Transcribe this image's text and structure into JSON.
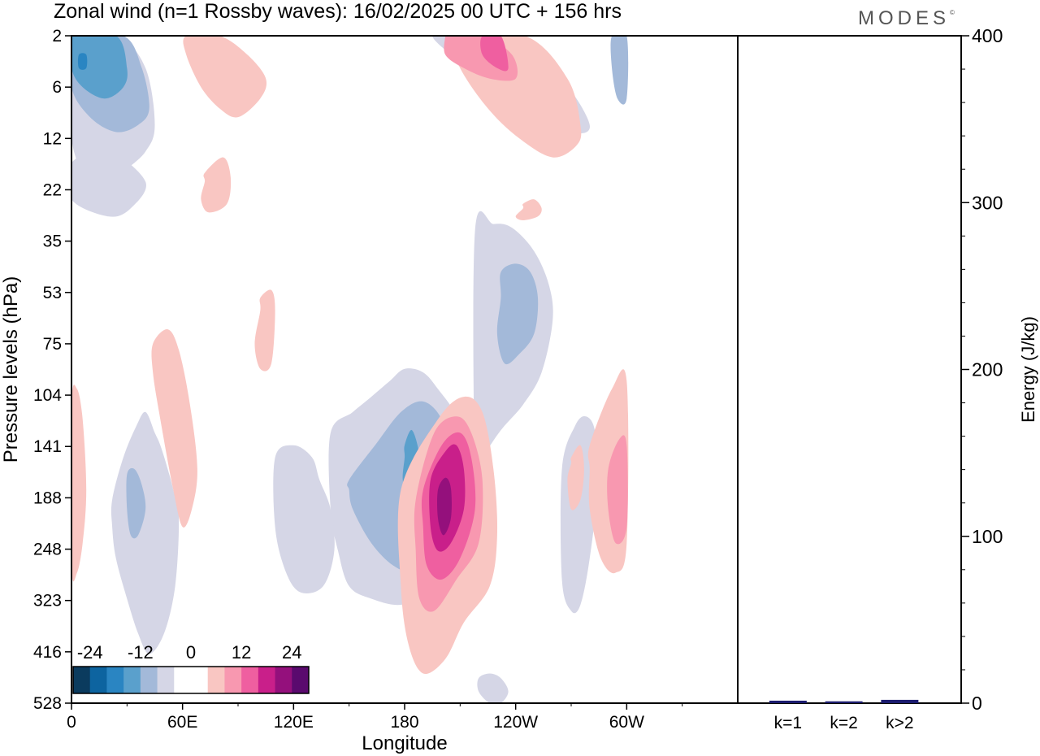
{
  "title": "Zonal wind (n=1 Rossby waves):  16/02/2025  00 UTC  + 156 hrs",
  "brand": "MODES",
  "brand_mark": "©",
  "chart_data": [
    {
      "type": "heatmap",
      "xlabel": "Longitude",
      "ylabel": "Pressure levels (hPa)",
      "x_ticks": [
        "0",
        "60E",
        "120E",
        "180",
        "120W",
        "60W"
      ],
      "y_ticks": [
        "2",
        "6",
        "12",
        "22",
        "35",
        "53",
        "75",
        "104",
        "141",
        "188",
        "248",
        "323",
        "416",
        "528"
      ],
      "colorbar": {
        "tick_labels": [
          "-24",
          "-12",
          "0",
          "12",
          "24"
        ],
        "colors": [
          "#0b3b5e",
          "#0d64a0",
          "#2a85c2",
          "#5aa0cc",
          "#a3b9d9",
          "#d5d6e6",
          "#ffffff",
          "#ffffff",
          "#f9c6c2",
          "#f898b0",
          "#ef5fa0",
          "#c91f8a",
          "#94107c",
          "#5a0a6e"
        ]
      },
      "contours": [
        {
          "level": "light-negative",
          "color": "#d5d6e6",
          "regions": [
            {
              "lon": [
                0,
                25,
                40,
                45,
                40,
                28,
                22,
                10,
                0
              ],
              "lev": [
                2,
                2,
                4,
                10,
                14,
                18,
                22,
                20,
                12
              ]
            },
            {
              "lon": [
                0,
                20,
                40,
                32,
                20,
                0
              ],
              "lev": [
                16,
                14,
                20,
                26,
                28,
                24
              ]
            },
            {
              "lon": [
                215,
                240,
                265,
                280,
                270,
                248,
                215,
                195
              ],
              "lev": [
                2,
                2,
                5,
                10,
                11,
                8,
                4,
                2
              ]
            },
            {
              "lon": [
                218,
                228,
                238,
                250,
                258,
                260,
                254,
                244,
                232,
                222,
                218
              ],
              "lev": [
                32,
                30,
                31,
                38,
                50,
                64,
                90,
                110,
                128,
                150,
                160
              ]
            },
            {
              "lon": [
                140,
                152,
                162,
                172,
                180,
                190,
                198,
                208,
                214,
                214,
                206,
                194,
                178,
                162,
                150,
                144,
                140
              ],
              "lev": [
                130,
                115,
                105,
                95,
                88,
                90,
                100,
                118,
                150,
                220,
                280,
                310,
                330,
                320,
                300,
                250,
                200
              ]
            },
            {
              "lon": [
                110,
                120,
                130,
                134,
                140,
                142,
                136,
                124,
                116,
                110
              ],
              "lev": [
                150,
                140,
                150,
                170,
                200,
                250,
                300,
                310,
                280,
                220
              ]
            },
            {
              "lon": [
                22,
                28,
                35,
                40,
                45,
                48,
                52,
                55,
                58,
                56,
                50,
                42,
                36,
                30,
                24,
                22
              ],
              "lev": [
                190,
                150,
                125,
                115,
                130,
                140,
                160,
                180,
                210,
                300,
                380,
                420,
                380,
                320,
                260,
                220
              ]
            },
            {
              "lon": [
                220,
                226,
                232,
                236,
                232,
                226,
                220
              ],
              "lev": [
                470,
                460,
                470,
                500,
                528,
                528,
                500
              ]
            },
            {
              "lon": [
                265,
                272,
                278,
                283,
                284,
                280,
                275,
                270,
                265
              ],
              "lev": [
                160,
                125,
                118,
                130,
                180,
                260,
                330,
                340,
                290
              ]
            }
          ]
        },
        {
          "level": "mid-negative",
          "color": "#a3b9d9",
          "regions": [
            {
              "lon": [
                0,
                28,
                38,
                42,
                36,
                24,
                10,
                0
              ],
              "lev": [
                2,
                2,
                4,
                8,
                10,
                11,
                9,
                6
              ]
            },
            {
              "lon": [
                232,
                240,
                248,
                252,
                250,
                242,
                234,
                230,
                232
              ],
              "lev": [
                45,
                42,
                45,
                55,
                70,
                80,
                85,
                70,
                55
              ]
            },
            {
              "lon": [
                150,
                164,
                178,
                190,
                200,
                205,
                204,
                198,
                186,
                174,
                162,
                152,
                150
              ],
              "lev": [
                170,
                140,
                115,
                108,
                120,
                150,
                200,
                260,
                280,
                270,
                240,
                200,
                180
              ]
            },
            {
              "lon": [
                30,
                34,
                38,
                40,
                36,
                32,
                30
              ],
              "lev": [
                165,
                160,
                175,
                200,
                230,
                230,
                200
              ]
            },
            {
              "lon": [
                292,
                300,
                300,
                295,
                292
              ],
              "lev": [
                2,
                2,
                7,
                7,
                4
              ]
            }
          ]
        },
        {
          "level": "dark-negative",
          "color": "#5aa0cc",
          "regions": [
            {
              "lon": [
                0,
                24,
                30,
                28,
                18,
                6,
                0
              ],
              "lev": [
                2,
                2,
                4,
                6,
                7,
                6,
                4
              ]
            },
            {
              "lon": [
                180,
                184,
                188,
                186,
                182,
                179,
                180
              ],
              "lev": [
                140,
                128,
                150,
                180,
                190,
                170,
                150
              ]
            }
          ]
        },
        {
          "level": "strong-negative",
          "color": "#2a85c2",
          "regions": [
            {
              "lon": [
                4,
                8,
                8,
                4
              ],
              "lev": [
                3,
                3,
                4,
                4
              ]
            }
          ]
        },
        {
          "level": "light-positive",
          "color": "#f9c6c2",
          "regions": [
            {
              "lon": [
                62,
                80,
                95,
                105,
                102,
                90,
                80,
                70,
                62
              ],
              "lev": [
                2,
                2,
                3,
                5,
                7,
                9,
                8,
                6,
                3
              ]
            },
            {
              "lon": [
                205,
                245,
                268,
                275,
                273,
                260,
                242,
                225,
                210,
                205
              ],
              "lev": [
                2,
                2,
                5,
                10,
                13,
                15,
                12,
                8,
                4,
                2
              ]
            },
            {
              "lon": [
                72,
                82,
                86,
                84,
                74,
                70,
                72
              ],
              "lev": [
                18,
                15,
                19,
                25,
                27,
                24,
                20
              ]
            },
            {
              "lon": [
                244,
                250,
                254,
                252,
                244,
                240,
                244
              ],
              "lev": [
                25,
                24,
                26,
                28,
                29,
                28,
                26
              ]
            },
            {
              "lon": [
                102,
                108,
                110,
                108,
                102,
                99,
                102
              ],
              "lev": [
                55,
                52,
                60,
                85,
                88,
                75,
                60
              ]
            },
            {
              "lon": [
                44,
                52,
                58,
                64,
                68,
                65,
                60,
                55,
                48,
                44
              ],
              "lev": [
                75,
                68,
                78,
                110,
                160,
                200,
                220,
                180,
                120,
                90
              ]
            },
            {
              "lon": [
                178,
                198,
                212,
                222,
                228,
                230,
                226,
                212,
                202,
                190,
                182,
                178
              ],
              "lev": [
                180,
                120,
                105,
                115,
                160,
                230,
                300,
                360,
                430,
                460,
                400,
                300
              ]
            },
            {
              "lon": [
                0,
                3,
                6,
                8,
                6,
                3,
                0
              ],
              "lev": [
                110,
                100,
                120,
                180,
                240,
                280,
                270
              ]
            },
            {
              "lon": [
                270,
                275,
                277,
                275,
                270,
                268,
                270
              ],
              "lev": [
                150,
                140,
                160,
                190,
                200,
                170,
                155
              ]
            },
            {
              "lon": [
                280,
                292,
                300,
                300,
                294,
                286,
                280,
                280
              ],
              "lev": [
                140,
                100,
                95,
                240,
                280,
                260,
                200,
                160
              ]
            }
          ]
        },
        {
          "level": "pink",
          "color": "#f898b0",
          "regions": [
            {
              "lon": [
                202,
                222,
                238,
                240,
                226,
                212,
                202,
                202
              ],
              "lev": [
                2,
                2,
                3,
                5,
                5,
                4,
                3,
                2
              ]
            },
            {
              "lon": [
                186,
                196,
                208,
                216,
                222,
                220,
                208,
                196,
                188,
                186
              ],
              "lev": [
                190,
                130,
                118,
                130,
                170,
                240,
                290,
                340,
                320,
                250
              ]
            },
            {
              "lon": [
                290,
                296,
                300,
                300,
                294,
                290
              ],
              "lev": [
                160,
                135,
                140,
                220,
                240,
                200
              ]
            }
          ]
        },
        {
          "level": "magenta",
          "color": "#ef5fa0",
          "regions": [
            {
              "lon": [
                190,
                200,
                210,
                216,
                218,
                210,
                200,
                192,
                190
              ],
              "lev": [
                180,
                140,
                130,
                150,
                200,
                260,
                290,
                270,
                220
              ]
            },
            {
              "lon": [
                222,
                232,
                236,
                230,
                222
              ],
              "lev": [
                2,
                2,
                4,
                4,
                3
              ]
            }
          ]
        },
        {
          "level": "deep-magenta",
          "color": "#c91f8a",
          "regions": [
            {
              "lon": [
                194,
                202,
                208,
                212,
                212,
                205,
                198,
                194
              ],
              "lev": [
                170,
                145,
                140,
                160,
                200,
                240,
                250,
                220
              ]
            }
          ]
        },
        {
          "level": "darkest",
          "color": "#94107c",
          "regions": [
            {
              "lon": [
                198,
                202,
                205,
                205,
                201,
                198
              ],
              "lev": [
                180,
                168,
                178,
                210,
                230,
                210
              ]
            }
          ]
        }
      ]
    },
    {
      "type": "bar",
      "ylabel": "Energy (J/kg)",
      "categories": [
        "k=1",
        "k=2",
        "k>2"
      ],
      "values": [
        1,
        0.6,
        1.5
      ],
      "ylim": [
        0,
        400
      ],
      "y_ticks": [
        "0",
        "100",
        "200",
        "300",
        "400"
      ],
      "bar_color": "#1b1b6e"
    }
  ]
}
